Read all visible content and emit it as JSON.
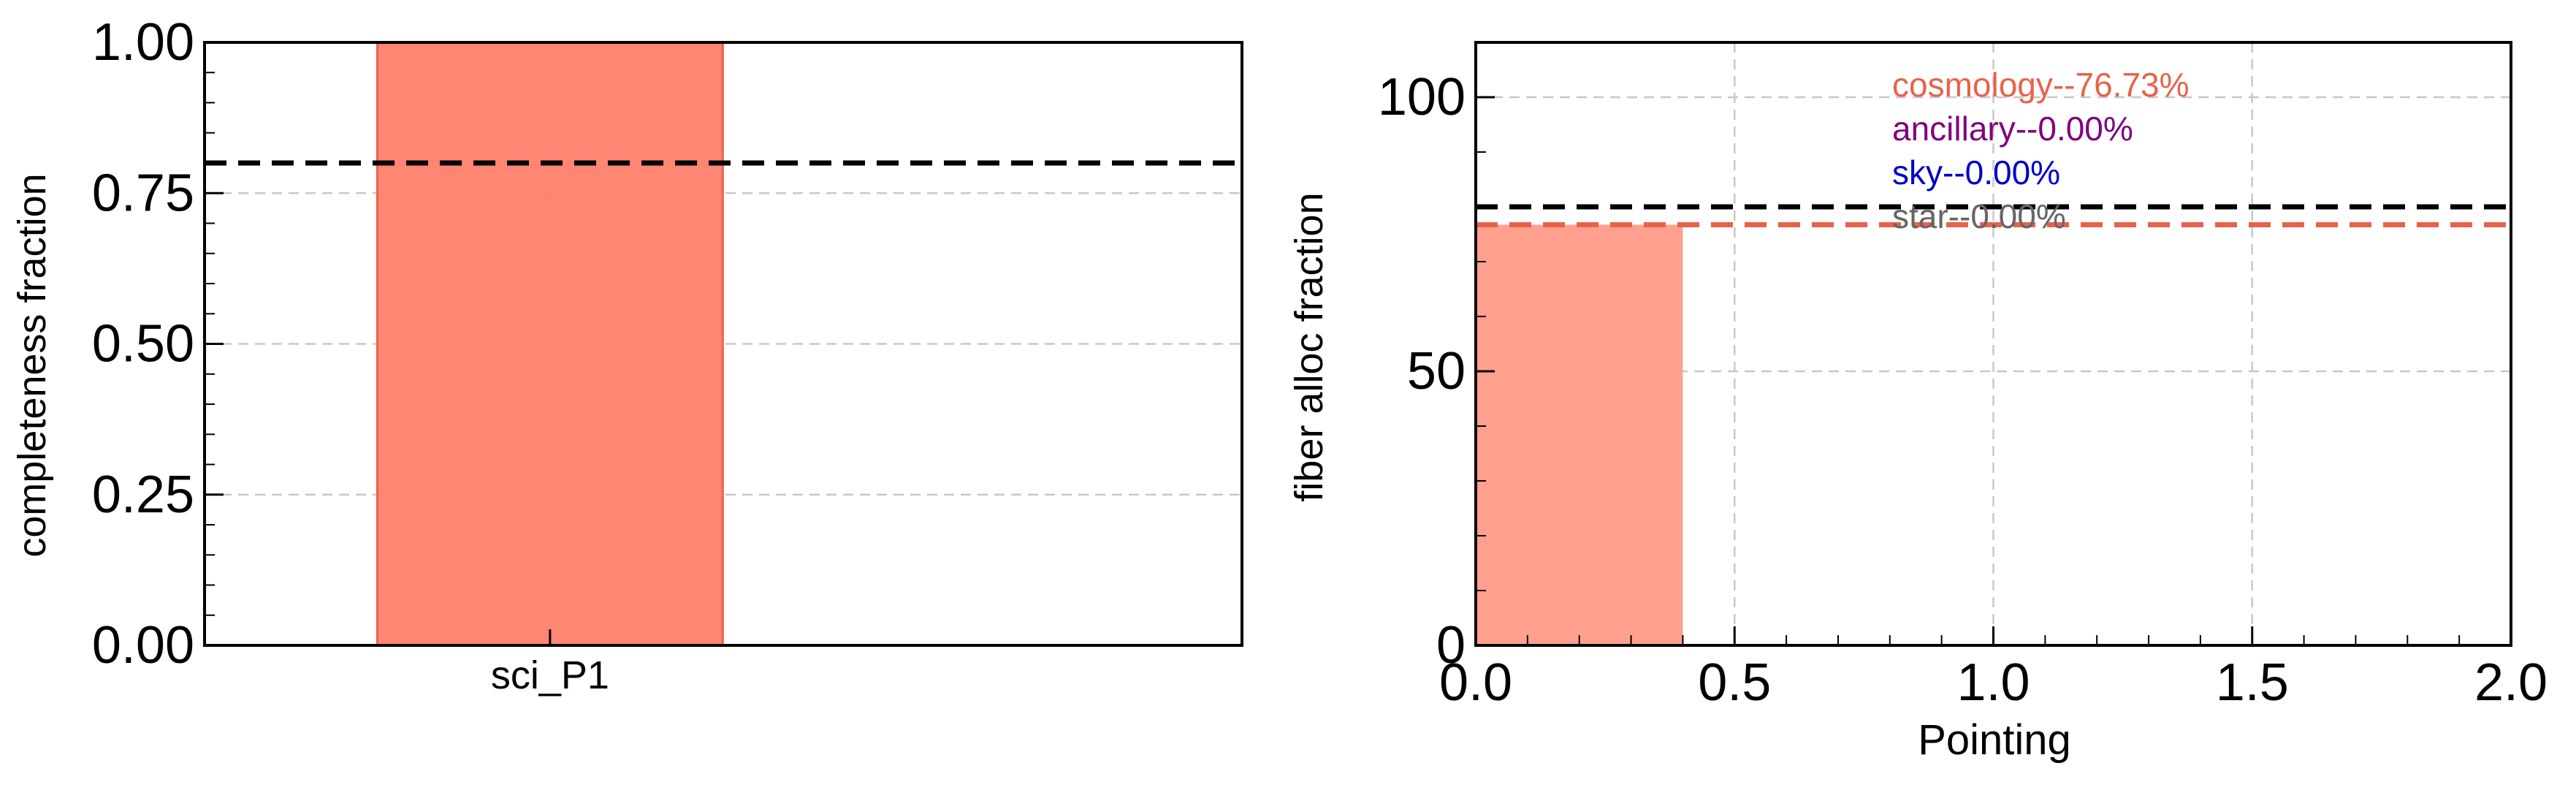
{
  "chart_data": [
    {
      "type": "bar",
      "categories": [
        "sci_P1"
      ],
      "values": [
        1.0
      ],
      "ylabel": "completeness fraction",
      "xlabel": "",
      "ylim": [
        0,
        1
      ],
      "yticks": [
        "0.00",
        "0.25",
        "0.50",
        "0.75",
        "1.00"
      ],
      "ytick_values": [
        0,
        0.25,
        0.5,
        0.75,
        1.0
      ],
      "reference_line": 0.8,
      "grid": "y-dashed",
      "bar_color": "#ff7f6b",
      "ref_line_color": "#000000"
    },
    {
      "type": "bar",
      "x_start": [
        0.0
      ],
      "x_end": [
        0.4
      ],
      "values": [
        76.73
      ],
      "xlabel": "Pointing",
      "ylabel": "fiber alloc fraction",
      "xlim": [
        0,
        2
      ],
      "ylim": [
        0,
        110
      ],
      "xticks": [
        "0.0",
        "0.5",
        "1.0",
        "1.5",
        "2.0"
      ],
      "xtick_values": [
        0,
        0.5,
        1.0,
        1.5,
        2.0
      ],
      "yticks": [
        "0",
        "50",
        "100"
      ],
      "ytick_values": [
        0,
        50,
        100
      ],
      "reference_lines": [
        {
          "value": 80,
          "color": "#000000"
        },
        {
          "value": 76.73,
          "color": "#e8624a"
        }
      ],
      "grid": "xy-dashed",
      "bar_color": "#ffa08f",
      "annotations": [
        {
          "text": "cosmology--76.73%",
          "color": "#e8624a"
        },
        {
          "text": "ancillary--0.00%",
          "color": "#800080"
        },
        {
          "text": "sky--0.00%",
          "color": "#0000cc"
        },
        {
          "text": "star--0.00%",
          "color": "#666666"
        }
      ]
    }
  ]
}
